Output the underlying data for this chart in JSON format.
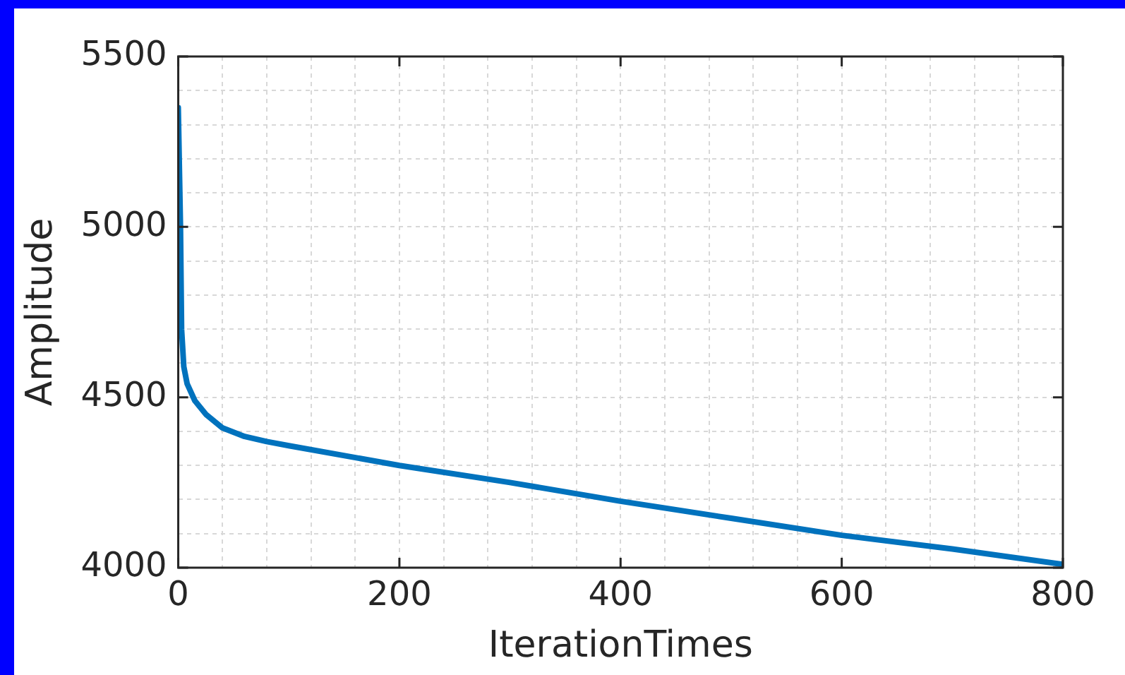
{
  "chart_data": {
    "type": "line",
    "xlabel": "IterationTimes",
    "ylabel": "Amplitude",
    "x": [
      0,
      2,
      3,
      5,
      8,
      15,
      25,
      40,
      60,
      80,
      100,
      200,
      300,
      400,
      500,
      600,
      700,
      800
    ],
    "series": [
      {
        "color": "#0072bd",
        "values": [
          5350,
          5000,
          4700,
          4590,
          4540,
          4490,
          4450,
          4410,
          4385,
          4370,
          4358,
          4300,
          4250,
          4195,
          4145,
          4095,
          4055,
          4010
        ]
      }
    ],
    "xlim": [
      0,
      800
    ],
    "ylim": [
      4000,
      5500
    ],
    "xticks": [
      0,
      {
        "value": 40,
        "label": null
      },
      {
        "value": 80,
        "label": null
      },
      {
        "value": 120,
        "label": null
      },
      {
        "value": 160,
        "label": null
      },
      200,
      {
        "value": 240,
        "label": null
      },
      {
        "value": 280,
        "label": null
      },
      {
        "value": 320,
        "label": null
      },
      {
        "value": 360,
        "label": null
      },
      400,
      {
        "value": 440,
        "label": null
      },
      {
        "value": 480,
        "label": null
      },
      {
        "value": 520,
        "label": null
      },
      {
        "value": 560,
        "label": null
      },
      600,
      {
        "value": 640,
        "label": null
      },
      {
        "value": 680,
        "label": null
      },
      {
        "value": 720,
        "label": null
      },
      {
        "value": 760,
        "label": null
      },
      800
    ],
    "yticks": [
      4000,
      {
        "value": 4100,
        "label": null
      },
      {
        "value": 4200,
        "label": null
      },
      {
        "value": 4300,
        "label": null
      },
      {
        "value": 4400,
        "label": null
      },
      4500,
      {
        "value": 4600,
        "label": null
      },
      {
        "value": 4700,
        "label": null
      },
      {
        "value": 4800,
        "label": null
      },
      {
        "value": 4900,
        "label": null
      },
      5000,
      {
        "value": 5100,
        "label": null
      },
      {
        "value": 5200,
        "label": null
      },
      {
        "value": 5300,
        "label": null
      },
      {
        "value": 5400,
        "label": null
      },
      5500
    ],
    "grid": true,
    "legend": false,
    "marker": "none",
    "line_style": "solid"
  }
}
